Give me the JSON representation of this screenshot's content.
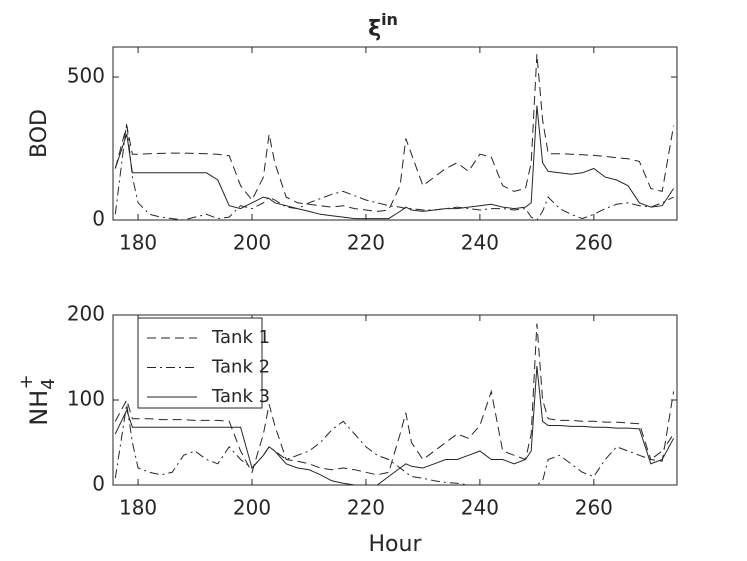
{
  "chart_data": [
    {
      "type": "line",
      "title": {
        "base": "ξ",
        "sup": "in"
      },
      "ylabel": "BOD",
      "x": [
        176,
        178,
        179,
        180,
        182,
        184,
        186,
        188,
        190,
        192,
        194,
        196,
        198,
        200,
        202,
        203,
        204,
        206,
        208,
        210,
        212,
        214,
        216,
        218,
        220,
        222,
        224,
        226,
        227,
        228,
        230,
        232,
        234,
        236,
        238,
        240,
        242,
        244,
        246,
        248,
        249,
        250,
        251,
        252,
        254,
        256,
        258,
        260,
        262,
        264,
        266,
        268,
        270,
        272,
        274
      ],
      "xlim": [
        175.6,
        274.6
      ],
      "xticks": [
        180,
        200,
        220,
        240,
        260
      ],
      "ylim": [
        0,
        605
      ],
      "yticks": [
        0,
        500
      ],
      "series": [
        {
          "name": "Tank 1",
          "color": "#262626",
          "style": "dashed",
          "values": [
            180,
            330,
            230,
            230,
            232,
            233,
            234,
            234,
            233,
            232,
            230,
            225,
            120,
            70,
            150,
            300,
            200,
            80,
            60,
            55,
            50,
            45,
            50,
            40,
            35,
            30,
            35,
            120,
            285,
            230,
            120,
            150,
            180,
            200,
            170,
            230,
            220,
            120,
            100,
            110,
            200,
            580,
            350,
            232,
            232,
            230,
            228,
            226,
            222,
            218,
            214,
            205,
            110,
            100,
            330
          ]
        },
        {
          "name": "Tank 2",
          "color": "#262626",
          "style": "dashdot",
          "values": [
            20,
            340,
            150,
            60,
            20,
            10,
            5,
            0,
            10,
            20,
            5,
            10,
            50,
            40,
            60,
            80,
            70,
            45,
            40,
            60,
            75,
            90,
            100,
            85,
            70,
            60,
            50,
            45,
            40,
            40,
            35,
            35,
            40,
            45,
            40,
            35,
            40,
            40,
            35,
            40,
            10,
            0,
            30,
            80,
            40,
            20,
            5,
            20,
            40,
            55,
            60,
            50,
            45,
            60,
            80
          ]
        },
        {
          "name": "Tank 3",
          "color": "#262626",
          "style": "solid",
          "values": [
            180,
            300,
            165,
            165,
            165,
            165,
            165,
            165,
            165,
            165,
            140,
            50,
            40,
            60,
            80,
            75,
            60,
            50,
            40,
            30,
            20,
            15,
            10,
            5,
            5,
            5,
            5,
            30,
            45,
            35,
            30,
            35,
            40,
            40,
            45,
            50,
            55,
            45,
            40,
            45,
            60,
            400,
            200,
            170,
            165,
            160,
            165,
            180,
            150,
            140,
            120,
            60,
            45,
            50,
            110
          ]
        }
      ]
    },
    {
      "type": "line",
      "ylabel": {
        "text": "NH",
        "sub": "4",
        "sup": "+"
      },
      "xlabel": "Hour",
      "legend": "upper left",
      "x": [
        176,
        178,
        179,
        180,
        182,
        184,
        186,
        188,
        190,
        192,
        194,
        196,
        198,
        200,
        202,
        203,
        204,
        206,
        208,
        210,
        212,
        214,
        216,
        218,
        220,
        222,
        224,
        226,
        227,
        228,
        230,
        232,
        234,
        236,
        238,
        240,
        242,
        244,
        246,
        248,
        249,
        250,
        251,
        252,
        254,
        256,
        258,
        260,
        262,
        264,
        266,
        268,
        270,
        272,
        274
      ],
      "xlim": [
        175.6,
        274.6
      ],
      "xticks": [
        180,
        200,
        220,
        240,
        260
      ],
      "ylim": [
        0,
        200
      ],
      "yticks": [
        0,
        100,
        200
      ],
      "series": [
        {
          "name": "Tank 1",
          "color": "#262626",
          "style": "dashed",
          "values": [
            75,
            100,
            78,
            78,
            78,
            77,
            77,
            77,
            76,
            76,
            76,
            75,
            40,
            15,
            60,
            95,
            70,
            30,
            28,
            25,
            20,
            18,
            20,
            18,
            15,
            12,
            15,
            60,
            85,
            50,
            30,
            40,
            50,
            60,
            55,
            70,
            110,
            40,
            35,
            30,
            60,
            190,
            100,
            78,
            76,
            76,
            75,
            75,
            74,
            74,
            73,
            72,
            30,
            28,
            110
          ]
        },
        {
          "name": "Tank 2",
          "color": "#262626",
          "style": "dashdot",
          "values": [
            8,
            95,
            50,
            20,
            15,
            12,
            15,
            35,
            40,
            30,
            25,
            45,
            30,
            20,
            35,
            45,
            40,
            30,
            35,
            40,
            50,
            65,
            75,
            60,
            45,
            35,
            30,
            20,
            15,
            10,
            8,
            5,
            3,
            2,
            0,
            0,
            0,
            0,
            0,
            0,
            0,
            0,
            5,
            30,
            35,
            25,
            15,
            10,
            30,
            45,
            40,
            35,
            30,
            40,
            60
          ]
        },
        {
          "name": "Tank 3",
          "color": "#262626",
          "style": "solid",
          "values": [
            60,
            88,
            68,
            68,
            68,
            68,
            68,
            68,
            68,
            68,
            68,
            68,
            68,
            20,
            35,
            45,
            40,
            25,
            20,
            18,
            12,
            5,
            2,
            0,
            0,
            0,
            10,
            20,
            25,
            22,
            20,
            25,
            30,
            30,
            35,
            40,
            30,
            30,
            25,
            30,
            40,
            140,
            75,
            70,
            70,
            69,
            69,
            68,
            68,
            67,
            67,
            66,
            25,
            30,
            55
          ]
        }
      ]
    }
  ]
}
